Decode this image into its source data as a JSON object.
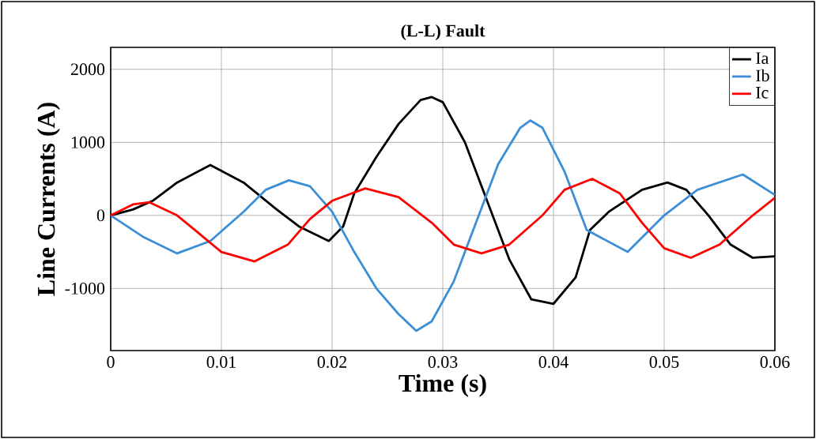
{
  "chart_data": {
    "type": "line",
    "title": "(L-L) Fault",
    "xlabel": "Time (s)",
    "ylabel": "Line Currents (A)",
    "xlim": [
      0,
      0.06
    ],
    "ylim": [
      -1850,
      2300
    ],
    "xticks": [
      0,
      0.01,
      0.02,
      0.03,
      0.04,
      0.05,
      0.06
    ],
    "yticks": [
      -1000,
      0,
      1000,
      2000
    ],
    "grid": true,
    "legend": "top right",
    "marker": "none",
    "line_style": "solid",
    "series": [
      {
        "name": "Ia",
        "color": "#000000",
        "x": [
          0,
          0.002,
          0.0038,
          0.006,
          0.009,
          0.012,
          0.015,
          0.017,
          0.0197,
          0.021,
          0.022,
          0.024,
          0.026,
          0.028,
          0.029,
          0.03,
          0.032,
          0.034,
          0.036,
          0.038,
          0.04,
          0.042,
          0.0433,
          0.045,
          0.048,
          0.0503,
          0.052,
          0.054,
          0.056,
          0.058,
          0.06
        ],
        "values": [
          0,
          80,
          200,
          450,
          690,
          450,
          80,
          -150,
          -350,
          -150,
          300,
          800,
          1250,
          1580,
          1620,
          1550,
          1000,
          200,
          -600,
          -1150,
          -1210,
          -850,
          -200,
          50,
          350,
          450,
          350,
          0,
          -400,
          -580,
          -560
        ]
      },
      {
        "name": "Ib",
        "color": "#3c8fd6",
        "x": [
          0,
          0.003,
          0.006,
          0.009,
          0.012,
          0.014,
          0.0161,
          0.018,
          0.02,
          0.022,
          0.024,
          0.026,
          0.0276,
          0.029,
          0.031,
          0.033,
          0.035,
          0.037,
          0.0379,
          0.039,
          0.041,
          0.043,
          0.0467,
          0.05,
          0.053,
          0.0571,
          0.06
        ],
        "values": [
          0,
          -300,
          -520,
          -350,
          50,
          350,
          480,
          400,
          50,
          -500,
          -1000,
          -1350,
          -1580,
          -1450,
          -900,
          -100,
          700,
          1200,
          1300,
          1200,
          600,
          -200,
          -500,
          0,
          350,
          560,
          280
        ]
      },
      {
        "name": "Ic",
        "color": "#ff0000",
        "x": [
          0,
          0.002,
          0.0035,
          0.006,
          0.008,
          0.01,
          0.013,
          0.016,
          0.018,
          0.02,
          0.023,
          0.026,
          0.029,
          0.031,
          0.0335,
          0.036,
          0.039,
          0.041,
          0.0435,
          0.046,
          0.048,
          0.05,
          0.0524,
          0.055,
          0.058,
          0.06
        ],
        "values": [
          0,
          150,
          180,
          0,
          -250,
          -500,
          -630,
          -400,
          -50,
          200,
          370,
          250,
          -100,
          -400,
          -520,
          -400,
          0,
          350,
          500,
          300,
          -100,
          -450,
          -580,
          -400,
          0,
          240
        ]
      }
    ]
  }
}
